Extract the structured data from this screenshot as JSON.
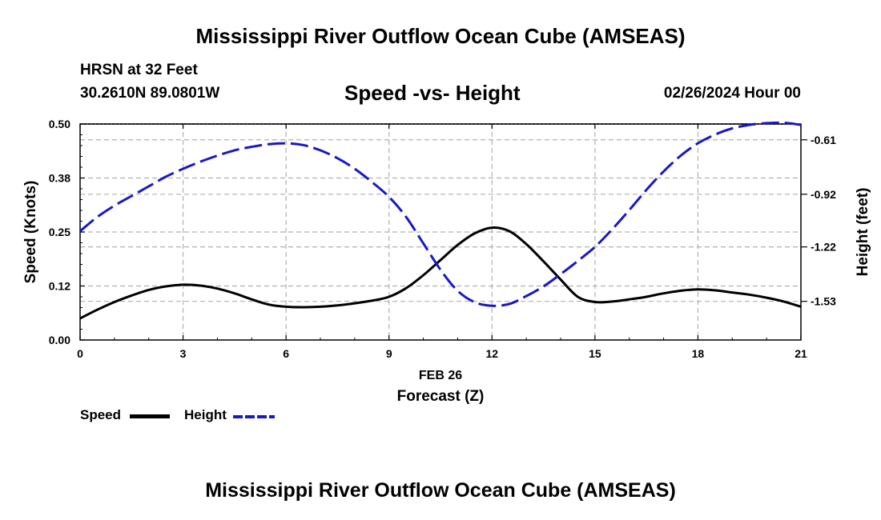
{
  "header": {
    "title": "Mississippi River Outflow Ocean Cube (AMSEAS)",
    "station": "HRSN at 32 Feet",
    "coords": "30.2610N  89.0801W",
    "datetime": "02/26/2024 Hour 00"
  },
  "footer": {
    "title": "Mississippi River Outflow Ocean Cube (AMSEAS)"
  },
  "legend": {
    "speed_label": "Speed",
    "height_label": "Height"
  },
  "colors": {
    "speed": "#000000",
    "height": "#1818c8",
    "grid": "#b0b0b0"
  },
  "chart_data": {
    "type": "line",
    "title": "Speed -vs- Height",
    "xlabel": "Forecast (Z)",
    "x_date_label": "FEB 26",
    "ylabel": "Speed (Knots)",
    "y2label": "Height (feet)",
    "xlim": [
      0,
      21
    ],
    "ylim": [
      0,
      0.5
    ],
    "y2lim": [
      -1.75,
      -0.52
    ],
    "x_ticks": [
      0,
      3,
      6,
      9,
      12,
      15,
      18,
      21
    ],
    "x_tick_labels": [
      "0",
      "3",
      "6",
      "9",
      "12",
      "15",
      "18",
      "21"
    ],
    "y_ticks": [
      0,
      0.125,
      0.25,
      0.375,
      0.5
    ],
    "y_tick_labels": [
      "0.00",
      "0.12",
      "0.25",
      "0.38",
      "0.50"
    ],
    "y2_ticks": [
      -1.53,
      -1.22,
      -0.92,
      -0.61
    ],
    "y2_tick_labels": [
      "-1.53",
      "-1.22",
      "-0.92",
      "-0.61"
    ],
    "series": [
      {
        "name": "Speed",
        "axis": "left",
        "style": "solid",
        "x": [
          0,
          0.5,
          1,
          1.5,
          2,
          2.5,
          3,
          3.5,
          4,
          4.5,
          5,
          5.5,
          6,
          6.5,
          7,
          7.5,
          8,
          8.5,
          9,
          9.5,
          10,
          10.5,
          11,
          11.5,
          12,
          12.5,
          13,
          13.5,
          14,
          14.5,
          15,
          15.5,
          16,
          16.5,
          17,
          17.5,
          18,
          18.5,
          19,
          19.5,
          20,
          20.5,
          21
        ],
        "values": [
          0.05,
          0.07,
          0.088,
          0.103,
          0.116,
          0.124,
          0.128,
          0.126,
          0.119,
          0.108,
          0.094,
          0.082,
          0.077,
          0.076,
          0.077,
          0.08,
          0.085,
          0.091,
          0.1,
          0.12,
          0.15,
          0.185,
          0.22,
          0.247,
          0.26,
          0.252,
          0.222,
          0.182,
          0.14,
          0.1,
          0.088,
          0.089,
          0.094,
          0.1,
          0.108,
          0.114,
          0.117,
          0.115,
          0.11,
          0.105,
          0.098,
          0.089,
          0.077
        ]
      },
      {
        "name": "Height",
        "axis": "right",
        "style": "dashed",
        "x": [
          0,
          0.5,
          1,
          1.5,
          2,
          2.5,
          3,
          3.5,
          4,
          4.5,
          5,
          5.5,
          6,
          6.5,
          7,
          7.5,
          8,
          8.5,
          9,
          9.5,
          10,
          10.5,
          11,
          11.5,
          12,
          12.5,
          13,
          13.5,
          14,
          14.5,
          15,
          15.5,
          16,
          16.5,
          17,
          17.5,
          18,
          18.5,
          19,
          19.5,
          20,
          20.5,
          21
        ],
        "values": [
          -1.13,
          -1.05,
          -0.985,
          -0.93,
          -0.875,
          -0.82,
          -0.775,
          -0.735,
          -0.7,
          -0.67,
          -0.65,
          -0.635,
          -0.63,
          -0.64,
          -0.67,
          -0.715,
          -0.775,
          -0.85,
          -0.935,
          -1.05,
          -1.2,
          -1.35,
          -1.47,
          -1.535,
          -1.555,
          -1.545,
          -1.5,
          -1.445,
          -1.375,
          -1.3,
          -1.22,
          -1.12,
          -1.01,
          -0.895,
          -0.79,
          -0.7,
          -0.63,
          -0.58,
          -0.545,
          -0.525,
          -0.515,
          -0.513,
          -0.525
        ]
      }
    ]
  }
}
